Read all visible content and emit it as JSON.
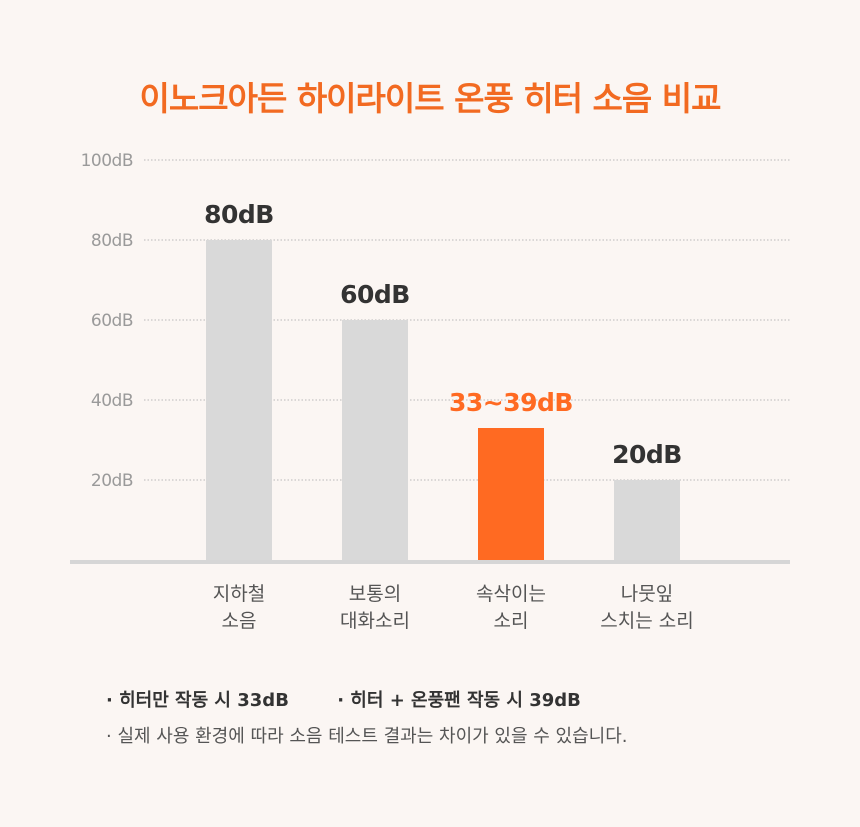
{
  "colors": {
    "title": "#f26a21",
    "bar": "#d9d9d9",
    "highlight_bar": "#ff6a22",
    "value_label": "#333333",
    "highlight_label": "#ff6a22",
    "grid": "#b8b8b8",
    "baseline": "#d6d6d6"
  },
  "chart_data": {
    "type": "bar",
    "title": "이노크아든 하이라이트 온풍 히터 소음 비교",
    "ylim": [
      0,
      100
    ],
    "yticks": [
      "20dB",
      "40dB",
      "60dB",
      "80dB",
      "100dB"
    ],
    "grid": true,
    "categories": [
      [
        "지하철",
        "소음"
      ],
      [
        "보통의",
        "대화소리"
      ],
      [
        "속삭이는",
        "소리"
      ],
      [
        "나뭇잎",
        "스치는 소리"
      ]
    ],
    "values": [
      80,
      60,
      33,
      20
    ],
    "value_labels": [
      "80dB",
      "60dB",
      "33~39dB",
      "20dB"
    ],
    "highlight_index": 2
  },
  "notes": {
    "line1a": "· 히터만 작동 시 33dB",
    "line1b": "· 히터 + 온풍팬 작동 시 39dB",
    "line2": "· 실제 사용 환경에 따라 소음 테스트 결과는 차이가 있을 수 있습니다."
  }
}
